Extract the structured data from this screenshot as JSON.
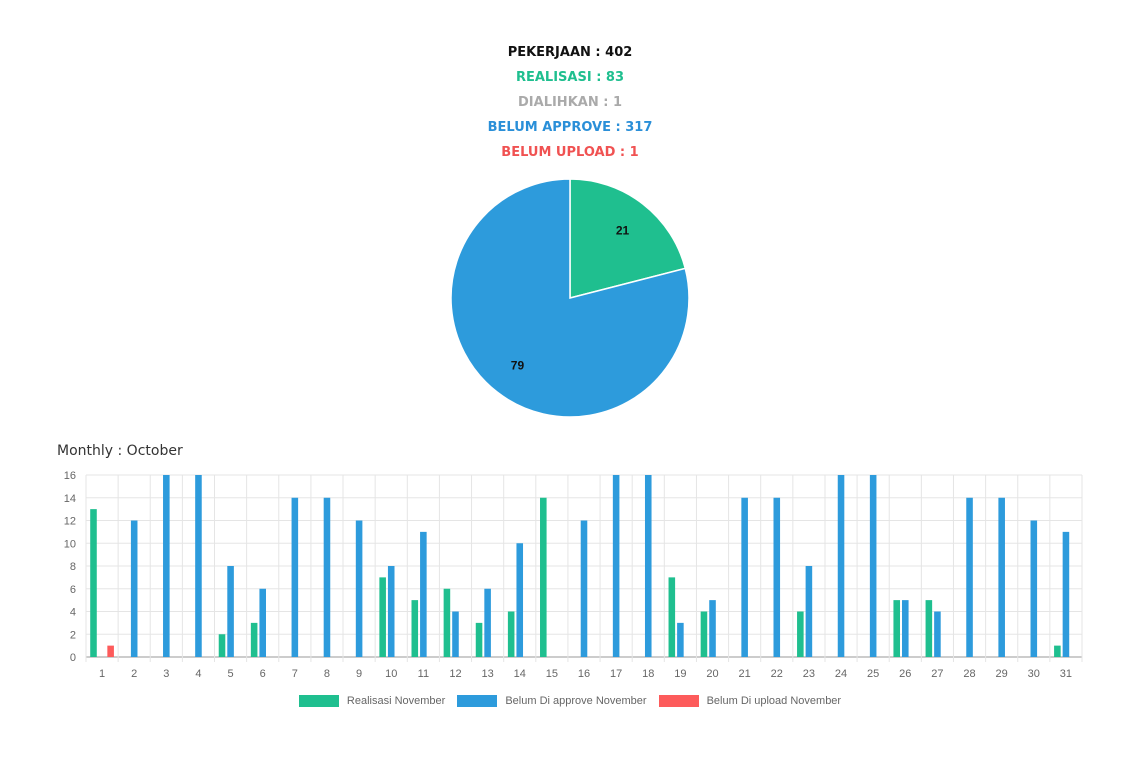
{
  "stats": {
    "total": "PEKERJAAN : 402",
    "realisasi": "REALISASI : 83",
    "dialihkan": "DIALIHKAN : 1",
    "belum_approve": "BELUM APPROVE : 317",
    "belum_upload": "BELUM UPLOAD : 1"
  },
  "monthly_title": "Monthly : October",
  "colors": {
    "realisasi": "#1fbf8f",
    "approve": "#2d9bdc",
    "upload": "#fd5b5b"
  },
  "legend": [
    {
      "label": "Realisasi November",
      "color": "#1fbf8f"
    },
    {
      "label": "Belum Di approve November",
      "color": "#2d9bdc"
    },
    {
      "label": "Belum Di upload November",
      "color": "#fd5b5b"
    }
  ],
  "chart_data": [
    {
      "type": "pie",
      "slices": [
        {
          "label": "21",
          "value": 21,
          "color": "#1fbf8f"
        },
        {
          "label": "79",
          "value": 79,
          "color": "#2d9bdc"
        }
      ]
    },
    {
      "type": "bar",
      "title": "Monthly : October",
      "categories": [
        "1",
        "2",
        "3",
        "4",
        "5",
        "6",
        "7",
        "8",
        "9",
        "10",
        "11",
        "12",
        "13",
        "14",
        "15",
        "16",
        "17",
        "18",
        "19",
        "20",
        "21",
        "22",
        "23",
        "24",
        "25",
        "26",
        "27",
        "28",
        "29",
        "30",
        "31"
      ],
      "series": [
        {
          "name": "Realisasi November",
          "color": "#1fbf8f",
          "values": [
            13,
            0,
            0,
            0,
            2,
            3,
            0,
            0,
            0,
            7,
            5,
            6,
            3,
            4,
            14,
            0,
            0,
            0,
            7,
            4,
            0,
            0,
            4,
            0,
            0,
            5,
            5,
            0,
            0,
            0,
            1
          ]
        },
        {
          "name": "Belum Di approve November",
          "color": "#2d9bdc",
          "values": [
            0,
            12,
            16,
            16,
            8,
            6,
            14,
            14,
            12,
            8,
            11,
            4,
            6,
            10,
            0,
            12,
            16,
            16,
            3,
            5,
            14,
            14,
            8,
            16,
            16,
            5,
            4,
            14,
            14,
            12,
            11
          ]
        },
        {
          "name": "Belum Di upload November",
          "color": "#fd5b5b",
          "values": [
            1,
            0,
            0,
            0,
            0,
            0,
            0,
            0,
            0,
            0,
            0,
            0,
            0,
            0,
            0,
            0,
            0,
            0,
            0,
            0,
            0,
            0,
            0,
            0,
            0,
            0,
            0,
            0,
            0,
            0,
            0
          ]
        }
      ],
      "ylim": [
        0,
        16
      ],
      "yticks": [
        0,
        2,
        4,
        6,
        8,
        10,
        12,
        14,
        16
      ],
      "grid": true,
      "legend_position": "bottom"
    }
  ]
}
